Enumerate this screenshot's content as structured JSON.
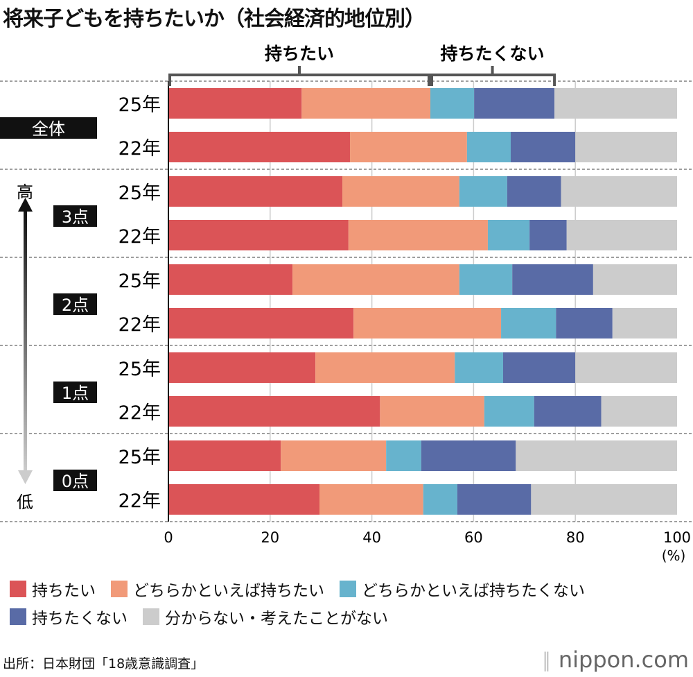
{
  "title": "将来子どもを持ちたいか（社会経済的地位別）",
  "colors": {
    "want": "#db5457",
    "rather_want": "#f19a79",
    "rather_not": "#67b3cd",
    "not_want": "#596ba6",
    "unknown": "#cccccc"
  },
  "brackets": {
    "want": "持ちたい",
    "not_want": "持ちたくない"
  },
  "arrow": {
    "high": "高",
    "low": "低"
  },
  "chart_data": {
    "type": "bar",
    "orientation": "horizontal",
    "stacked": true,
    "xlim": [
      0,
      100
    ],
    "xticks": [
      0,
      20,
      40,
      60,
      80,
      100
    ],
    "xunit": "(%)",
    "grid": true,
    "legend_position": "bottom",
    "groups": [
      {
        "label": "全体",
        "rows": [
          {
            "label": "25年",
            "values": [
              26.2,
              25.3,
              8.6,
              15.8,
              24.1
            ]
          },
          {
            "label": "22年",
            "values": [
              35.7,
              23.0,
              8.6,
              12.7,
              20.0
            ]
          }
        ]
      },
      {
        "label": "3点",
        "rows": [
          {
            "label": "25年",
            "values": [
              34.2,
              23.0,
              9.4,
              10.6,
              22.8
            ]
          },
          {
            "label": "22年",
            "values": [
              35.4,
              27.4,
              8.2,
              7.3,
              21.7
            ]
          }
        ]
      },
      {
        "label": "2点",
        "rows": [
          {
            "label": "25年",
            "values": [
              24.4,
              32.8,
              10.4,
              15.9,
              16.5
            ]
          },
          {
            "label": "22年",
            "values": [
              36.4,
              29.0,
              10.8,
              11.1,
              12.7
            ]
          }
        ]
      },
      {
        "label": "1点",
        "rows": [
          {
            "label": "25年",
            "values": [
              28.9,
              27.4,
              9.5,
              14.2,
              20.0
            ]
          },
          {
            "label": "22年",
            "values": [
              41.6,
              20.5,
              9.8,
              13.2,
              14.9
            ]
          }
        ]
      },
      {
        "label": "0点",
        "rows": [
          {
            "label": "25年",
            "values": [
              22.1,
              20.7,
              6.9,
              18.6,
              31.7
            ]
          },
          {
            "label": "22年",
            "values": [
              29.7,
              20.4,
              6.7,
              14.5,
              28.7
            ]
          }
        ]
      }
    ],
    "series": [
      {
        "name": "持ちたい"
      },
      {
        "name": "どちらかといえば持ちたい"
      },
      {
        "name": "どちらかといえば持ちたくない"
      },
      {
        "name": "持ちたくない"
      },
      {
        "name": "分からない・考えたことがない"
      }
    ]
  },
  "footer": {
    "source": "出所：日本財団「18歳意識調査」",
    "logo": "nippon",
    ".com": ".com"
  }
}
